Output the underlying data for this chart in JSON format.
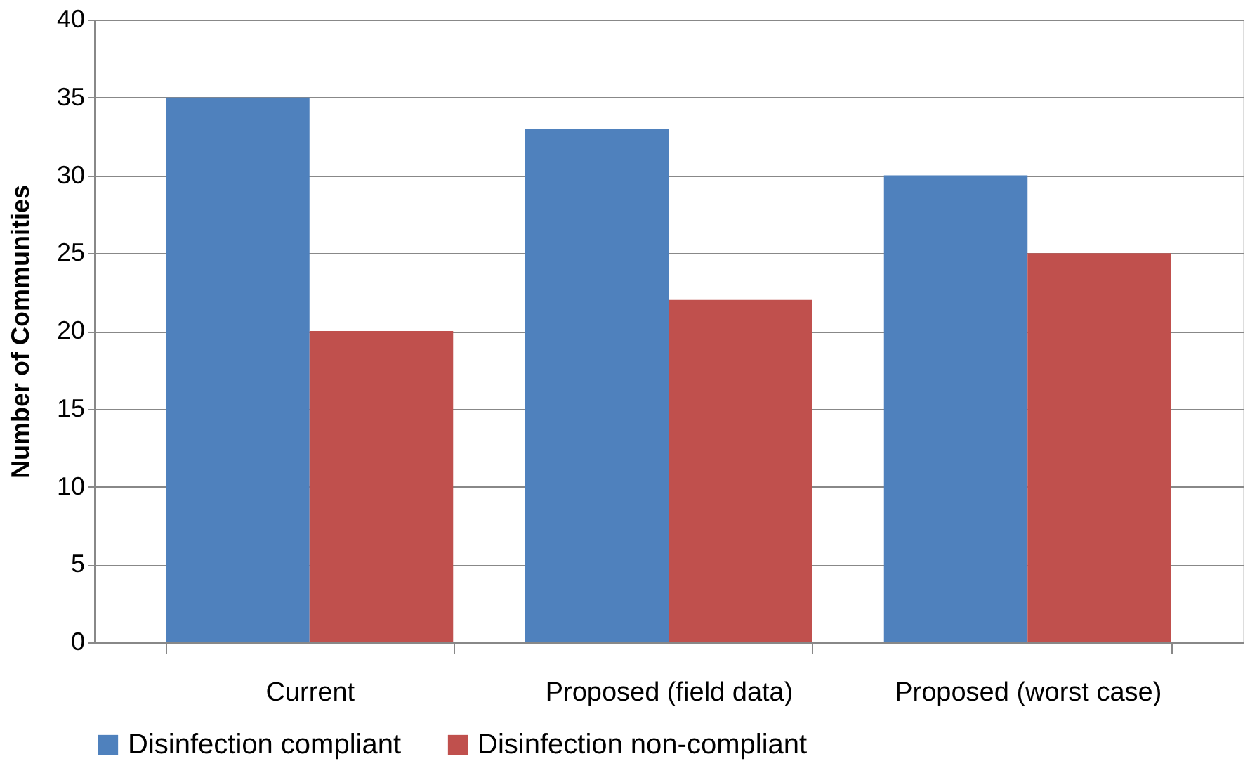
{
  "chart_data": {
    "type": "bar",
    "categories": [
      "Current",
      "Proposed (field data)",
      "Proposed (worst case)"
    ],
    "series": [
      {
        "name": "Disinfection compliant",
        "color": "#4f81bd",
        "values": [
          35,
          33,
          30
        ]
      },
      {
        "name": "Disinfection non-compliant",
        "color": "#c0504d",
        "values": [
          20,
          22,
          25
        ]
      }
    ],
    "ylabel": "Number of Communities",
    "ylim": [
      0,
      40
    ],
    "yticks": [
      0,
      5,
      10,
      15,
      20,
      25,
      30,
      35,
      40
    ],
    "grid": "y",
    "legend": "bottom"
  }
}
